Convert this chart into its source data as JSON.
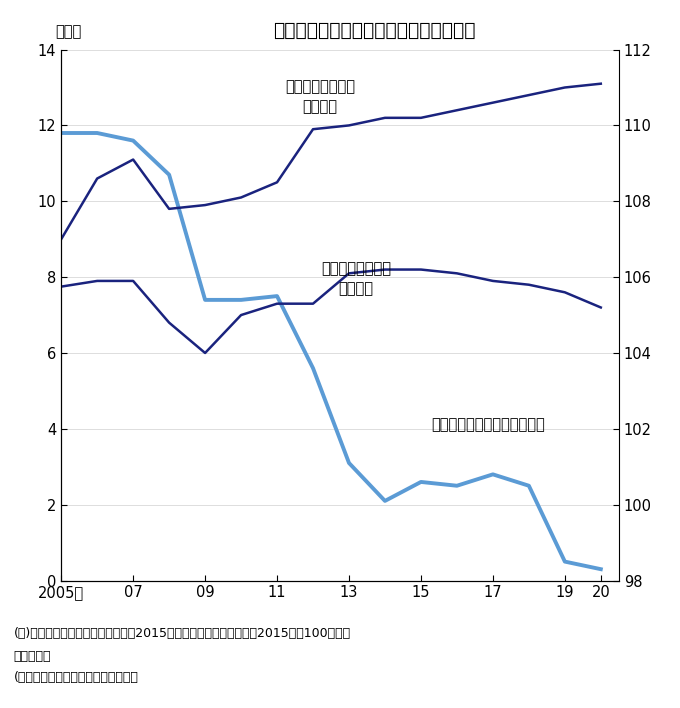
{
  "title": "日米の労働生産性と日本の実質賃金指数",
  "left_ylabel": "万ドル",
  "years": [
    2005,
    2006,
    2007,
    2008,
    2009,
    2010,
    2011,
    2012,
    2013,
    2014,
    2015,
    2016,
    2017,
    2018,
    2019,
    2020
  ],
  "us_productivity": [
    9.0,
    10.6,
    11.1,
    9.8,
    9.9,
    10.1,
    10.5,
    11.9,
    12.0,
    12.2,
    12.2,
    12.4,
    12.6,
    12.8,
    13.0,
    13.1
  ],
  "jp_productivity": [
    7.75,
    7.9,
    7.9,
    6.8,
    6.0,
    7.0,
    7.3,
    7.3,
    8.1,
    8.2,
    8.2,
    8.1,
    7.9,
    7.8,
    7.6,
    7.2
  ],
  "jp_real_wage": [
    11.8,
    11.8,
    11.6,
    10.7,
    7.4,
    7.4,
    7.5,
    5.6,
    3.1,
    2.1,
    2.6,
    2.5,
    2.8,
    2.5,
    0.5,
    0.3
  ],
  "us_color": "#1a237e",
  "jp_prod_color": "#1a237e",
  "jp_wage_color": "#5b9bd5",
  "left_ylim": [
    0,
    14
  ],
  "right_ylim": [
    98,
    112
  ],
  "left_yticks": [
    0,
    2,
    4,
    6,
    8,
    10,
    12,
    14
  ],
  "right_yticks": [
    98,
    100,
    102,
    104,
    106,
    108,
    110,
    112
  ],
  "xticks": [
    2005,
    2007,
    2009,
    2011,
    2013,
    2015,
    2017,
    2019,
    2020
  ],
  "xticklabels": [
    "2005年",
    "07",
    "09",
    "11",
    "13",
    "15",
    "17",
    "19",
    "20"
  ],
  "note1": "(注)労働生産性は購買力平価換算（2015年基準）、実質賃金指数は2015年を100として",
  "note2": "　　指数化",
  "note3": "(出所）日本生産性本部、厚生労働省",
  "label_us": "米国の労働生産性\n（左軸）",
  "label_jp_prod": "日本の労働生産性\n（左軸）",
  "label_jp_wage": "日本の実質賃金指数（右軸）",
  "us_lw": 1.8,
  "jp_prod_lw": 1.8,
  "jp_wage_lw": 2.8
}
